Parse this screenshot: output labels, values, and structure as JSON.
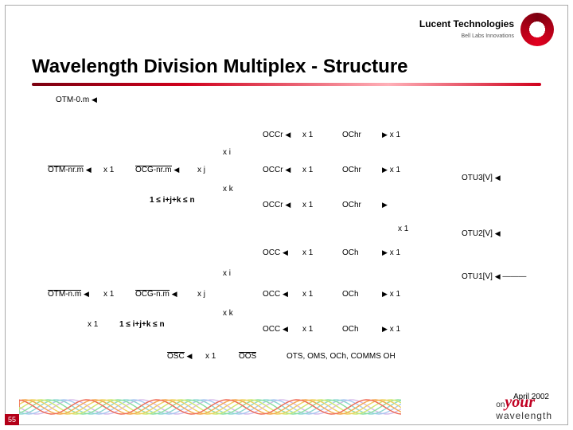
{
  "brand": {
    "name": "Lucent Technologies",
    "tagline": "Bell Labs Innovations"
  },
  "title": "Wavelength Division Multiplex - Structure",
  "footer": {
    "date": "April 2002",
    "slide": "55",
    "tag_on": "on",
    "tag_your": "your",
    "tag_wl": "wavelength"
  },
  "wave_colors": [
    "#d4b8e8",
    "#a8c8f0",
    "#8ad8d0",
    "#8de0a0",
    "#d0e870",
    "#f0d060",
    "#f4a850",
    "#ef6a55"
  ],
  "labels": {
    "otm0m": "OTM-0.m",
    "otm_nrm": "OTM-nr.m",
    "ocg_nrm": "OCG-nr.m",
    "otm_nm": "OTM-n.m",
    "ocg_nm": "OCG-n.m",
    "occr": "OCCr",
    "ochr": "OChr",
    "occ": "OCC",
    "och": "OCh",
    "otu3v": "OTU3[V]",
    "otu2v": "OTU2[V]",
    "otu1v": "OTU1[V]",
    "x1": "x 1",
    "xi": "x i",
    "xj": "x j",
    "xk": "x k",
    "constraint": "1 ≤ i+j+k ≤ n",
    "osc": "OSC",
    "oos": "OOS",
    "bottom": "OTS, OMS, OCh, COMMS OH"
  },
  "arrows": {
    "left": "◀",
    "right": "▶"
  }
}
